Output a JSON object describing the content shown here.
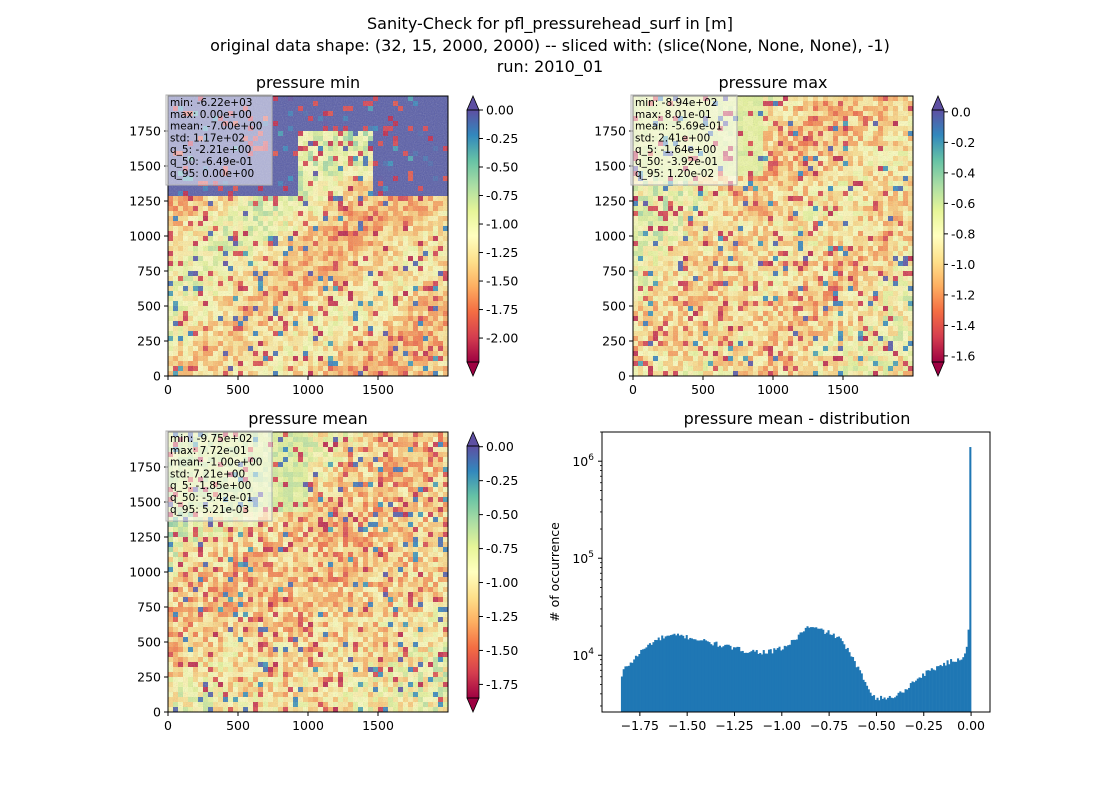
{
  "figure": {
    "title_lines": [
      "Sanity-Check for pfl_pressurehead_surf in [m]",
      "original data shape: (32, 15, 2000, 2000) -- sliced with: (slice(None, None, None), -1)",
      "run: 2010_01"
    ]
  },
  "panels": [
    {
      "id": "min",
      "title": "pressure min",
      "x_ticks": [
        "0",
        "500",
        "1000",
        "1500"
      ],
      "y_ticks": [
        "0",
        "250",
        "500",
        "750",
        "1000",
        "1250",
        "1500",
        "1750"
      ],
      "stats": [
        "min: -6.22e+03",
        "max: 0.00e+00",
        "mean: -7.00e+00",
        "std: 1.17e+02",
        "q_5: -2.21e+00",
        "q_50: -6.49e-01",
        "q_95: 0.00e+00"
      ],
      "colorbar": {
        "vmin": -2.21,
        "vmax": 0.0,
        "extend": "both",
        "ticks": [
          "0.00",
          "-0.25",
          "-0.50",
          "-0.75",
          "-1.00",
          "-1.25",
          "-1.50",
          "-1.75",
          "-2.00"
        ]
      }
    },
    {
      "id": "max",
      "title": "pressure max",
      "x_ticks": [
        "0",
        "500",
        "1000",
        "1500"
      ],
      "y_ticks": [
        "0",
        "250",
        "500",
        "750",
        "1000",
        "1250",
        "1500",
        "1750"
      ],
      "stats": [
        "min: -8.94e+02",
        "max: 8.01e-01",
        "mean: -5.69e-01",
        "std: 2.41e+00",
        "q_5: -1.64e+00",
        "q_50: -3.92e-01",
        "q_95: 1.20e-02"
      ],
      "colorbar": {
        "vmin": -1.64,
        "vmax": 0.012,
        "extend": "both",
        "ticks": [
          "0.0",
          "-0.2",
          "-0.4",
          "-0.6",
          "-0.8",
          "-1.0",
          "-1.2",
          "-1.4",
          "-1.6"
        ]
      }
    },
    {
      "id": "mean",
      "title": "pressure mean",
      "x_ticks": [
        "0",
        "500",
        "1000",
        "1500"
      ],
      "y_ticks": [
        "0",
        "250",
        "500",
        "750",
        "1000",
        "1250",
        "1500",
        "1750"
      ],
      "stats": [
        "min: -9.75e+02",
        "max: 7.72e-01",
        "mean: -1.00e+00",
        "std: 7.21e+00",
        "q_5: -1.85e+00",
        "q_50: -5.42e-01",
        "q_95: 5.21e-03"
      ],
      "colorbar": {
        "vmin": -1.85,
        "vmax": 0.0052,
        "extend": "both",
        "ticks": [
          "0.00",
          "-0.25",
          "-0.50",
          "-0.75",
          "-1.00",
          "-1.25",
          "-1.50",
          "-1.75"
        ]
      }
    }
  ],
  "colormap": [
    "#9e0142",
    "#d53e4f",
    "#f46d43",
    "#fdae61",
    "#fee08b",
    "#ffffbf",
    "#e6f598",
    "#abdda4",
    "#66c2a5",
    "#3288bd",
    "#5e4fa2"
  ],
  "histogram": {
    "title": "pressure mean - distribution",
    "ylabel": "# of occurrence",
    "bar_color": "#1f77b4"
  },
  "chart_data": [
    {
      "type": "heatmap",
      "title": "pressure min",
      "x_range": [
        0,
        2000
      ],
      "y_range": [
        0,
        2000
      ],
      "value_range": [
        -2.21,
        0.0
      ],
      "colormap": "Spectral"
    },
    {
      "type": "heatmap",
      "title": "pressure max",
      "x_range": [
        0,
        2000
      ],
      "y_range": [
        0,
        2000
      ],
      "value_range": [
        -1.64,
        0.012
      ],
      "colormap": "Spectral"
    },
    {
      "type": "heatmap",
      "title": "pressure mean",
      "x_range": [
        0,
        2000
      ],
      "y_range": [
        0,
        2000
      ],
      "value_range": [
        -1.85,
        0.0052
      ],
      "colormap": "Spectral"
    },
    {
      "type": "bar",
      "title": "pressure mean - distribution",
      "ylabel": "# of occurrence",
      "yscale": "log",
      "xlim": [
        -1.95,
        0.1
      ],
      "ylim": [
        2600,
        2000000
      ],
      "x_ticks": [
        "-1.75",
        "-1.50",
        "-1.25",
        "-1.00",
        "-0.75",
        "-0.50",
        "-0.25",
        "0.00"
      ],
      "y_ticks": [
        "10^4",
        "10^5",
        "10^6"
      ],
      "profile_x": [
        -1.85,
        -1.84,
        -1.82,
        -1.79,
        -1.76,
        -1.72,
        -1.68,
        -1.62,
        -1.55,
        -1.48,
        -1.4,
        -1.3,
        -1.2,
        -1.1,
        -1.05,
        -1.0,
        -0.97,
        -0.93,
        -0.89,
        -0.86,
        -0.82,
        -0.78,
        -0.74,
        -0.7,
        -0.66,
        -0.63,
        -0.6,
        -0.57,
        -0.54,
        -0.51,
        -0.49,
        -0.46,
        -0.42,
        -0.38,
        -0.34,
        -0.3,
        -0.26,
        -0.22,
        -0.18,
        -0.14,
        -0.1,
        -0.06,
        -0.035,
        -0.02,
        -0.01,
        -0.004,
        0.0
      ],
      "profile_y": [
        5400,
        6800,
        7700,
        8600,
        10200,
        12000,
        13800,
        15500,
        16000,
        15200,
        13800,
        12400,
        11200,
        10800,
        11000,
        11800,
        12600,
        14500,
        17800,
        19500,
        18800,
        17800,
        16800,
        15000,
        12200,
        9500,
        7500,
        5800,
        4600,
        3700,
        3600,
        3600,
        3700,
        4000,
        4600,
        5400,
        6200,
        6900,
        7600,
        8200,
        8700,
        9100,
        10100,
        13500,
        22000,
        60000,
        1400000
      ]
    }
  ]
}
